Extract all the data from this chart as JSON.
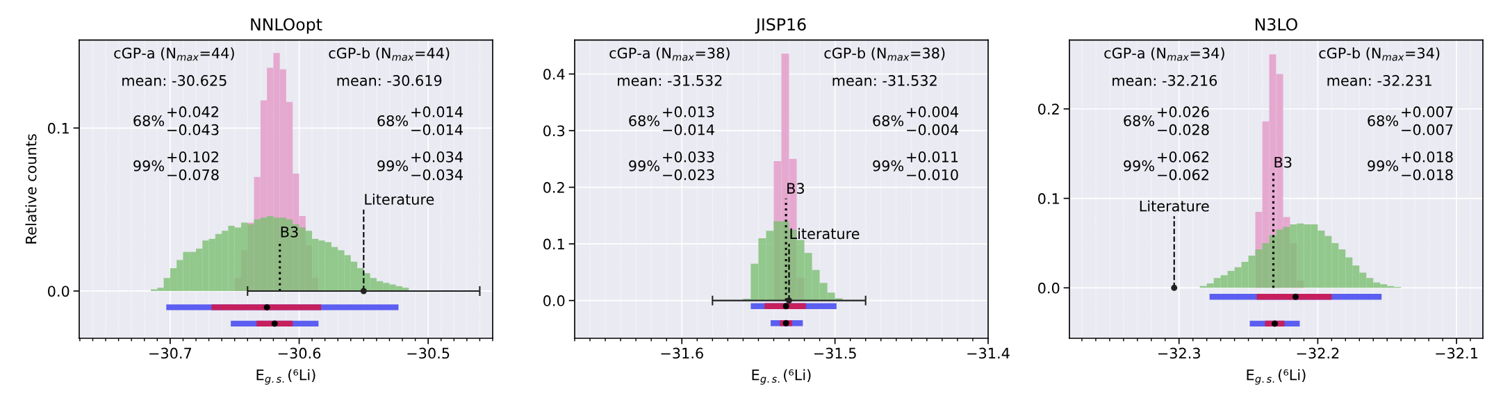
{
  "chart_data": [
    {
      "type": "histogram",
      "title": "NNLOopt",
      "xlabel": "E$_{g.s.}$(⁶Li)",
      "ylabel": "Relative counts",
      "xlim": [
        -30.7705,
        -30.45
      ],
      "ylim": [
        -0.029,
        0.154
      ],
      "xticks": [
        {
          "value": -30.7,
          "label": "−30.7"
        },
        {
          "value": -30.6,
          "label": "−30.6"
        },
        {
          "value": -30.5,
          "label": "−30.5"
        }
      ],
      "yticks": [
        {
          "value": 0,
          "label": "0.0"
        },
        {
          "value": 0.1,
          "label": "0.1"
        }
      ],
      "grid": true,
      "annotations": [
        "cGP-a (N$_{max}$=44)",
        "cGP-b (N$_{max}$=44)",
        "mean: -30.625",
        "mean: -30.619",
        "68%",
        "+0.042",
        "−0.043",
        "68%",
        "+0.014",
        "−0.014",
        "99%",
        "+0.102",
        "−0.078",
        "99%",
        "+0.034",
        "−0.034",
        {
          "text": "B3",
          "x": -30.615,
          "y": 0.03
        },
        {
          "text": "Literature",
          "x": -30.55,
          "y": 0.05
        }
      ],
      "series": [
        {
          "color": "#e5a9d0",
          "bins": [
            -30.65,
            -30.645,
            -30.64,
            -30.635,
            -30.63,
            -30.625,
            -30.62,
            -30.615,
            -30.61,
            -30.605,
            -30.6,
            -30.595,
            -30.59,
            -30.585
          ],
          "values": [
            0.008,
            0.025,
            0.042,
            0.07,
            0.117,
            0.137,
            0.146,
            0.136,
            0.116,
            0.072,
            0.046,
            0.028,
            0.008
          ]
        },
        {
          "color": "#7cbf72",
          "bins": [
            -30.715,
            -30.71,
            -30.705,
            -30.7,
            -30.695,
            -30.69,
            -30.685,
            -30.68,
            -30.675,
            -30.67,
            -30.665,
            -30.66,
            -30.655,
            -30.65,
            -30.645,
            -30.64,
            -30.635,
            -30.63,
            -30.625,
            -30.62,
            -30.615,
            -30.61,
            -30.605,
            -30.6,
            -30.595,
            -30.59,
            -30.585,
            -30.58,
            -30.575,
            -30.57,
            -30.565,
            -30.56,
            -30.555,
            -30.55,
            -30.545,
            -30.54,
            -30.535,
            -30.53,
            -30.525,
            -30.52,
            -30.515,
            -30.51,
            -30.505,
            -30.5,
            -30.495
          ],
          "values": [
            0.001,
            0.002,
            0.008,
            0.014,
            0.019,
            0.024,
            0.024,
            0.026,
            0.031,
            0.032,
            0.035,
            0.037,
            0.04,
            0.039,
            0.042,
            0.041,
            0.044,
            0.045,
            0.046,
            0.045,
            0.045,
            0.044,
            0.041,
            0.039,
            0.037,
            0.032,
            0.031,
            0.03,
            0.027,
            0.025,
            0.022,
            0.018,
            0.014,
            0.011,
            0.008,
            0.006,
            0.005,
            0.004,
            0.003,
            0.002,
            null,
            null,
            null,
            null
          ]
        },
        {
          "type": "line",
          "x": [
            -30.615,
            -30.615
          ],
          "values": [
            0,
            0.03
          ],
          "color": "#000000",
          "line_style": "dotted"
        },
        {
          "type": "line",
          "x": [
            -30.55,
            -30.55
          ],
          "values": [
            0,
            0.05
          ],
          "color": "#000000",
          "line_style": "dashed"
        },
        {
          "type": "scatter",
          "x": [
            -30.55
          ],
          "values": [
            0
          ],
          "xerrors": [
            [
              -30.64,
              -30.46
            ]
          ],
          "color": "#222222",
          "marker": "circle"
        },
        {
          "type": "line",
          "x": [
            -30.703,
            -30.523
          ],
          "values": [
            -0.01,
            -0.01
          ],
          "color": "#5b5ef0",
          "line_style": "solid"
        },
        {
          "type": "line",
          "x": [
            -30.653,
            -30.585
          ],
          "values": [
            -0.02,
            -0.02
          ],
          "color": "#5b5ef0",
          "line_style": "solid"
        },
        {
          "type": "line",
          "x": [
            -30.668,
            -30.583
          ],
          "values": [
            -0.01,
            -0.01
          ],
          "color": "#c51f5d",
          "line_style": "solid"
        },
        {
          "type": "line",
          "x": [
            -30.633,
            -30.605
          ],
          "values": [
            -0.02,
            -0.02
          ],
          "color": "#c51f5d",
          "line_style": "solid"
        },
        {
          "type": "scatter",
          "x": [
            -30.625,
            -30.619
          ],
          "values": [
            -0.01,
            -0.02
          ],
          "color": "#000000",
          "marker": "circle"
        }
      ]
    },
    {
      "type": "histogram",
      "title": "JISP16",
      "xlabel": "E$_{g.s.}$(⁶Li)",
      "xlim": [
        -31.67,
        -31.4
      ],
      "ylim": [
        -0.0667,
        0.46
      ],
      "xticks": [
        {
          "value": -31.6,
          "label": "−31.6"
        },
        {
          "value": -31.5,
          "label": "−31.5"
        },
        {
          "value": -31.4,
          "label": "−31.4"
        }
      ],
      "yticks": [
        {
          "value": 0,
          "label": "0.0"
        },
        {
          "value": 0.1,
          "label": "0.1"
        },
        {
          "value": 0.2,
          "label": "0.2"
        },
        {
          "value": 0.3,
          "label": "0.3"
        },
        {
          "value": 0.4,
          "label": "0.4"
        }
      ],
      "grid": true,
      "annotations": [
        "cGP-a (N$_{max}$=38)",
        "cGP-b (N$_{max}$=38)",
        "mean: -31.532",
        "mean: -31.532",
        "68%",
        "+0.013",
        "−0.014",
        "68%",
        "+0.004",
        "−0.004",
        "99%",
        "+0.033",
        "−0.023",
        "99%",
        "+0.011",
        "−0.010",
        {
          "text": "B3",
          "x": -31.532,
          "y": 0.18
        },
        {
          "text": "Literature",
          "x": -31.53,
          "y": 0.1
        }
      ],
      "series": [
        {
          "color": "#e5a9d0",
          "bins": [
            -31.54,
            -31.535,
            -31.53,
            -31.525,
            -31.52
          ],
          "values": [
            0.246,
            0.436,
            0.25,
            0.04
          ]
        },
        {
          "color": "#7cbf72",
          "bins": [
            -31.56,
            -31.555,
            -31.55,
            -31.545,
            -31.54,
            -31.535,
            -31.53,
            -31.525,
            -31.52,
            -31.515,
            -31.51,
            -31.505,
            -31.5,
            -31.495
          ],
          "values": [
            0.003,
            0.065,
            0.11,
            0.123,
            0.14,
            0.14,
            0.125,
            0.107,
            0.084,
            0.054,
            0.031,
            0.014,
            0.004
          ]
        },
        {
          "type": "line",
          "x": [
            -31.532,
            -31.532
          ],
          "values": [
            0,
            0.18
          ],
          "color": "#000000",
          "line_style": "dotted"
        },
        {
          "type": "line",
          "x": [
            -31.53,
            -31.53
          ],
          "values": [
            0,
            0.1
          ],
          "color": "#000000",
          "line_style": "dashed"
        },
        {
          "type": "scatter",
          "x": [
            -31.53
          ],
          "values": [
            0
          ],
          "xerrors": [
            [
              -31.58,
              -31.48
            ]
          ],
          "color": "#222222",
          "marker": "circle"
        },
        {
          "type": "line",
          "x": [
            -31.555,
            -31.499
          ],
          "values": [
            -0.01,
            -0.01
          ],
          "color": "#5b5ef0",
          "line_style": "solid"
        },
        {
          "type": "line",
          "x": [
            -31.542,
            -31.521
          ],
          "values": [
            -0.04,
            -0.04
          ],
          "color": "#5b5ef0",
          "line_style": "solid"
        },
        {
          "type": "line",
          "x": [
            -31.546,
            -31.519
          ],
          "values": [
            -0.01,
            -0.01
          ],
          "color": "#c51f5d",
          "line_style": "solid"
        },
        {
          "type": "line",
          "x": [
            -31.536,
            -31.528
          ],
          "values": [
            -0.04,
            -0.04
          ],
          "color": "#c51f5d",
          "line_style": "solid"
        },
        {
          "type": "scatter",
          "x": [
            -31.532,
            -31.532
          ],
          "values": [
            -0.01,
            -0.04
          ],
          "color": "#000000",
          "marker": "circle"
        }
      ]
    },
    {
      "type": "histogram",
      "title": "N3LO",
      "xlabel": "E$_{g.s.}$(⁶Li)",
      "xlim": [
        -32.379,
        -32.081
      ],
      "ylim": [
        -0.0564,
        0.277
      ],
      "xticks": [
        {
          "value": -32.3,
          "label": "−32.3"
        },
        {
          "value": -32.2,
          "label": "−32.2"
        },
        {
          "value": -32.1,
          "label": "−32.1"
        }
      ],
      "yticks": [
        {
          "value": 0,
          "label": "0.0"
        },
        {
          "value": 0.1,
          "label": "0.1"
        },
        {
          "value": 0.2,
          "label": "0.2"
        }
      ],
      "grid": true,
      "annotations": [
        "cGP-a (N$_{max}$=34)",
        "cGP-b (N$_{max}$=34)",
        "mean: -32.216",
        "mean: -32.231",
        "68%",
        "+0.026",
        "−0.028",
        "68%",
        "+0.007",
        "−0.007",
        "99%",
        "+0.062",
        "−0.062",
        "99%",
        "+0.018",
        "−0.018",
        {
          "text": "B3",
          "x": -32.232,
          "y": 0.129
        },
        {
          "text": "Literature",
          "x": -32.3035,
          "y": 0.08
        }
      ],
      "series": [
        {
          "color": "#e5a9d0",
          "bins": [
            -32.245,
            -32.24,
            -32.235,
            -32.23,
            -32.225,
            -32.22,
            -32.215,
            -32.21
          ],
          "values": [
            0.085,
            0.186,
            0.261,
            0.239,
            0.079,
            0.05,
            0.008
          ]
        },
        {
          "color": "#7cbf72",
          "bins": [
            -32.285,
            -32.28,
            -32.275,
            -32.27,
            -32.265,
            -32.26,
            -32.255,
            -32.25,
            -32.245,
            -32.24,
            -32.235,
            -32.23,
            -32.225,
            -32.22,
            -32.215,
            -32.21,
            -32.205,
            -32.2,
            -32.195,
            -32.19,
            -32.185,
            -32.18,
            -32.175,
            -32.17,
            -32.165,
            -32.16,
            -32.155,
            -32.15,
            -32.145,
            -32.14
          ],
          "values": [
            0.002,
            0.005,
            0.011,
            0.014,
            0.019,
            0.023,
            0.029,
            0.036,
            0.043,
            0.05,
            0.059,
            0.065,
            0.068,
            0.071,
            0.072,
            0.071,
            0.071,
            0.064,
            0.058,
            0.05,
            0.043,
            0.034,
            0.025,
            0.017,
            0.011,
            0.006,
            0.004,
            0.002,
            0.001
          ]
        },
        {
          "type": "line",
          "x": [
            -32.232,
            -32.232
          ],
          "values": [
            0,
            0.129
          ],
          "color": "#000000",
          "line_style": "dotted"
        },
        {
          "type": "line",
          "x": [
            -32.3035,
            -32.3035
          ],
          "values": [
            0,
            0.08
          ],
          "color": "#000000",
          "line_style": "dashed"
        },
        {
          "type": "scatter",
          "x": [
            -32.3035
          ],
          "values": [
            0
          ],
          "color": "#222222",
          "marker": "circle"
        },
        {
          "type": "line",
          "x": [
            -32.278,
            -32.154
          ],
          "values": [
            -0.01,
            -0.01
          ],
          "color": "#5b5ef0",
          "line_style": "solid"
        },
        {
          "type": "line",
          "x": [
            -32.249,
            -32.213
          ],
          "values": [
            -0.04,
            -0.04
          ],
          "color": "#5b5ef0",
          "line_style": "solid"
        },
        {
          "type": "line",
          "x": [
            -32.244,
            -32.19
          ],
          "values": [
            -0.01,
            -0.01
          ],
          "color": "#c51f5d",
          "line_style": "solid"
        },
        {
          "type": "line",
          "x": [
            -32.238,
            -32.224
          ],
          "values": [
            -0.04,
            -0.04
          ],
          "color": "#c51f5d",
          "line_style": "solid"
        },
        {
          "type": "scatter",
          "x": [
            -32.216,
            -32.231
          ],
          "values": [
            -0.01,
            -0.04
          ],
          "color": "#000000",
          "marker": "circle"
        }
      ]
    }
  ]
}
